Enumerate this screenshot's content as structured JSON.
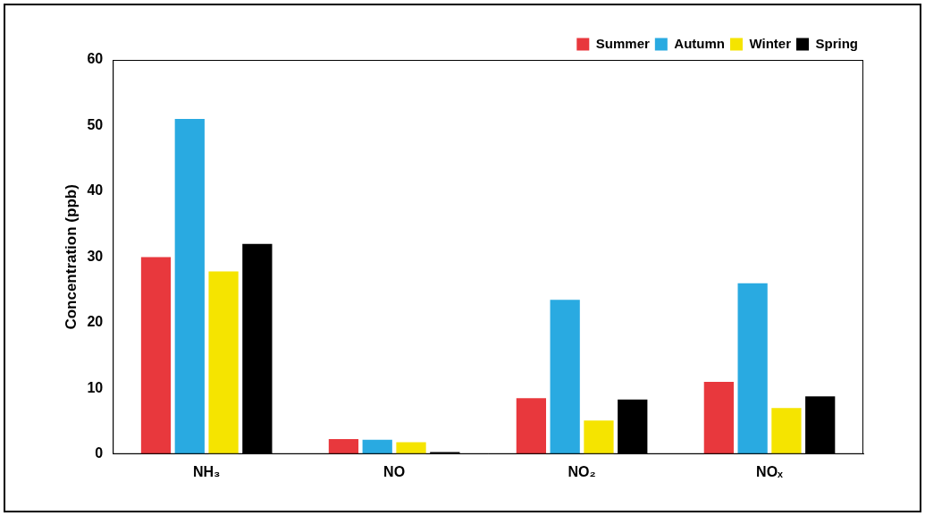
{
  "chart_data": {
    "type": "bar",
    "y_label": "Concentration (ppb)",
    "categories": [
      "NH₃",
      "NO",
      "NO₂",
      "NOₓ"
    ],
    "series": [
      {
        "name": "Summer",
        "color": "#e8383d",
        "values": [
          30,
          2.3,
          8.5,
          11
        ]
      },
      {
        "name": "Autumn",
        "color": "#29aae1",
        "values": [
          51,
          2.2,
          23.5,
          26
        ]
      },
      {
        "name": "Winter",
        "color": "#f5e400",
        "values": [
          27.8,
          1.8,
          5.1,
          7
        ]
      },
      {
        "name": "Spring",
        "color": "#000000",
        "values": [
          32,
          0.3,
          8.3,
          8.8
        ]
      }
    ],
    "ylim": [
      0,
      60
    ],
    "yticks": [
      0,
      10,
      20,
      30,
      40,
      50,
      60
    ],
    "grid": false,
    "legend": "top-right"
  }
}
